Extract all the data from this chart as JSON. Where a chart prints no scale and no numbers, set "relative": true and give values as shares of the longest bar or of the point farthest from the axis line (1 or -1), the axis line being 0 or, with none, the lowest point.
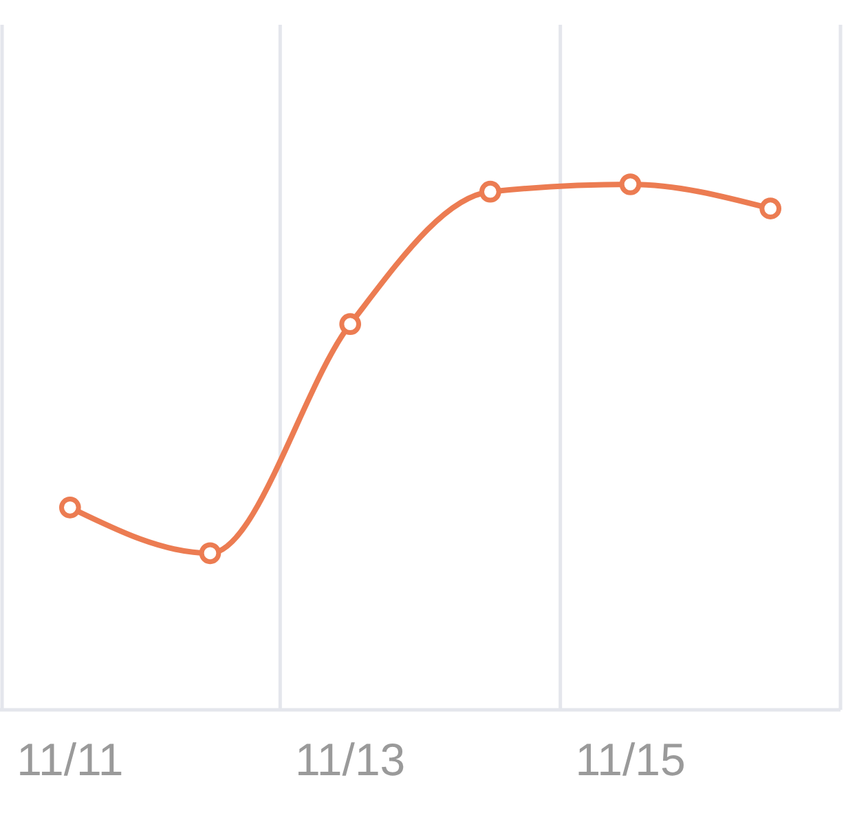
{
  "chart_data": {
    "type": "line",
    "relative": true,
    "categories": [
      "11/11",
      null,
      "11/13",
      null,
      "11/15",
      null
    ],
    "series": [
      {
        "color": "#ec7c52",
        "values": [
          0.385,
          0.298,
          0.734,
          0.986,
          1,
          0.954
        ]
      }
    ],
    "grid": "x",
    "marker": "circle",
    "line_style": "solid"
  }
}
